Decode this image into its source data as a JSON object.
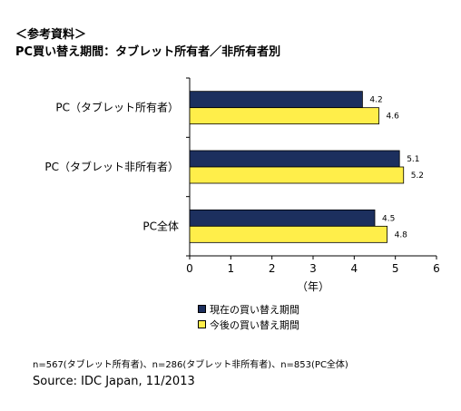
{
  "header": {
    "reference": "＜参考資料＞",
    "subtitle": "PC買い替え期間：タブレット所有者／非所有者別"
  },
  "chart_data": {
    "type": "bar",
    "orientation": "horizontal",
    "title": "",
    "categories": [
      "PC（タブレット所有者）",
      "PC（タブレット非所有者）",
      "PC全体"
    ],
    "series": [
      {
        "name": "現在の買い替え期間",
        "values": [
          4.2,
          5.1,
          4.5
        ],
        "color": "#1c2f5e"
      },
      {
        "name": "今後の買い替え期間",
        "values": [
          4.6,
          5.2,
          4.8
        ],
        "color": "#ffee4a"
      }
    ],
    "xlim": [
      0,
      6
    ],
    "xticks": [
      0,
      1,
      2,
      3,
      4,
      5,
      6
    ],
    "xlabel": "（年）",
    "grid": false,
    "legend_position": "bottom"
  },
  "footer": {
    "note": "n=567(タブレット所有者)、n=286(タブレット非所有者)、n=853(PC全体)",
    "source": "Source: IDC Japan, 11/2013"
  }
}
